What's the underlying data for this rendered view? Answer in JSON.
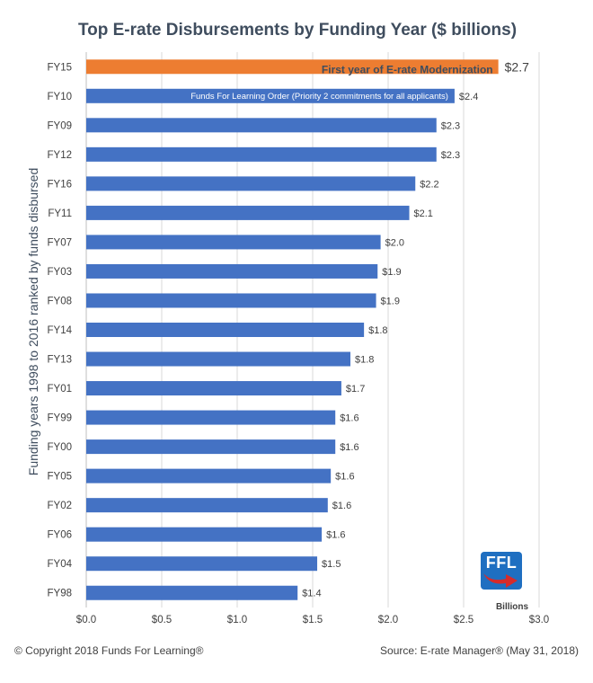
{
  "chart_data": {
    "type": "bar",
    "orientation": "horizontal",
    "title": "Top E-rate Disbursements by Funding Year ($ billions)",
    "ylabel": "Funding years 1998 to 2016 ranked by funds disbursed",
    "xunit_label": "Billions",
    "xlim": [
      0,
      3.0
    ],
    "xticks": [
      0.0,
      0.5,
      1.0,
      1.5,
      2.0,
      2.5,
      3.0
    ],
    "xtick_labels": [
      "$0.0",
      "$0.5",
      "$1.0",
      "$1.5",
      "$2.0",
      "$2.5",
      "$3.0"
    ],
    "grid": "vertical",
    "categories": [
      "FY15",
      "FY10",
      "FY09",
      "FY12",
      "FY16",
      "FY11",
      "FY07",
      "FY03",
      "FY08",
      "FY14",
      "FY13",
      "FY01",
      "FY99",
      "FY00",
      "FY05",
      "FY02",
      "FY06",
      "FY04",
      "FY98"
    ],
    "values": [
      2.73,
      2.44,
      2.32,
      2.32,
      2.18,
      2.14,
      1.95,
      1.93,
      1.92,
      1.84,
      1.75,
      1.69,
      1.65,
      1.65,
      1.62,
      1.6,
      1.56,
      1.53,
      1.4
    ],
    "value_labels": [
      "$2.7",
      "$2.4",
      "$2.3",
      "$2.3",
      "$2.2",
      "$2.1",
      "$2.0",
      "$1.9",
      "$1.9",
      "$1.8",
      "$1.8",
      "$1.7",
      "$1.6",
      "$1.6",
      "$1.6",
      "$1.6",
      "$1.6",
      "$1.5",
      "$1.4"
    ],
    "highlight_index": 0,
    "colors": {
      "bar": "#4472c4",
      "highlight": "#ed7d31",
      "grid": "#d9d9d9"
    },
    "annotations": [
      {
        "bar_index": 0,
        "text": "First year of E-rate Modernization"
      },
      {
        "bar_index": 1,
        "text": "Funds For Learning Order (Priority 2 commitments for all applicants)"
      }
    ]
  },
  "footer": {
    "copyright": "© Copyright 2018 Funds For Learning®",
    "source": "Source: E-rate Manager® (May 31, 2018)"
  },
  "logo": {
    "text": "FFL",
    "icon": "ffl-logo-arrow-icon"
  }
}
